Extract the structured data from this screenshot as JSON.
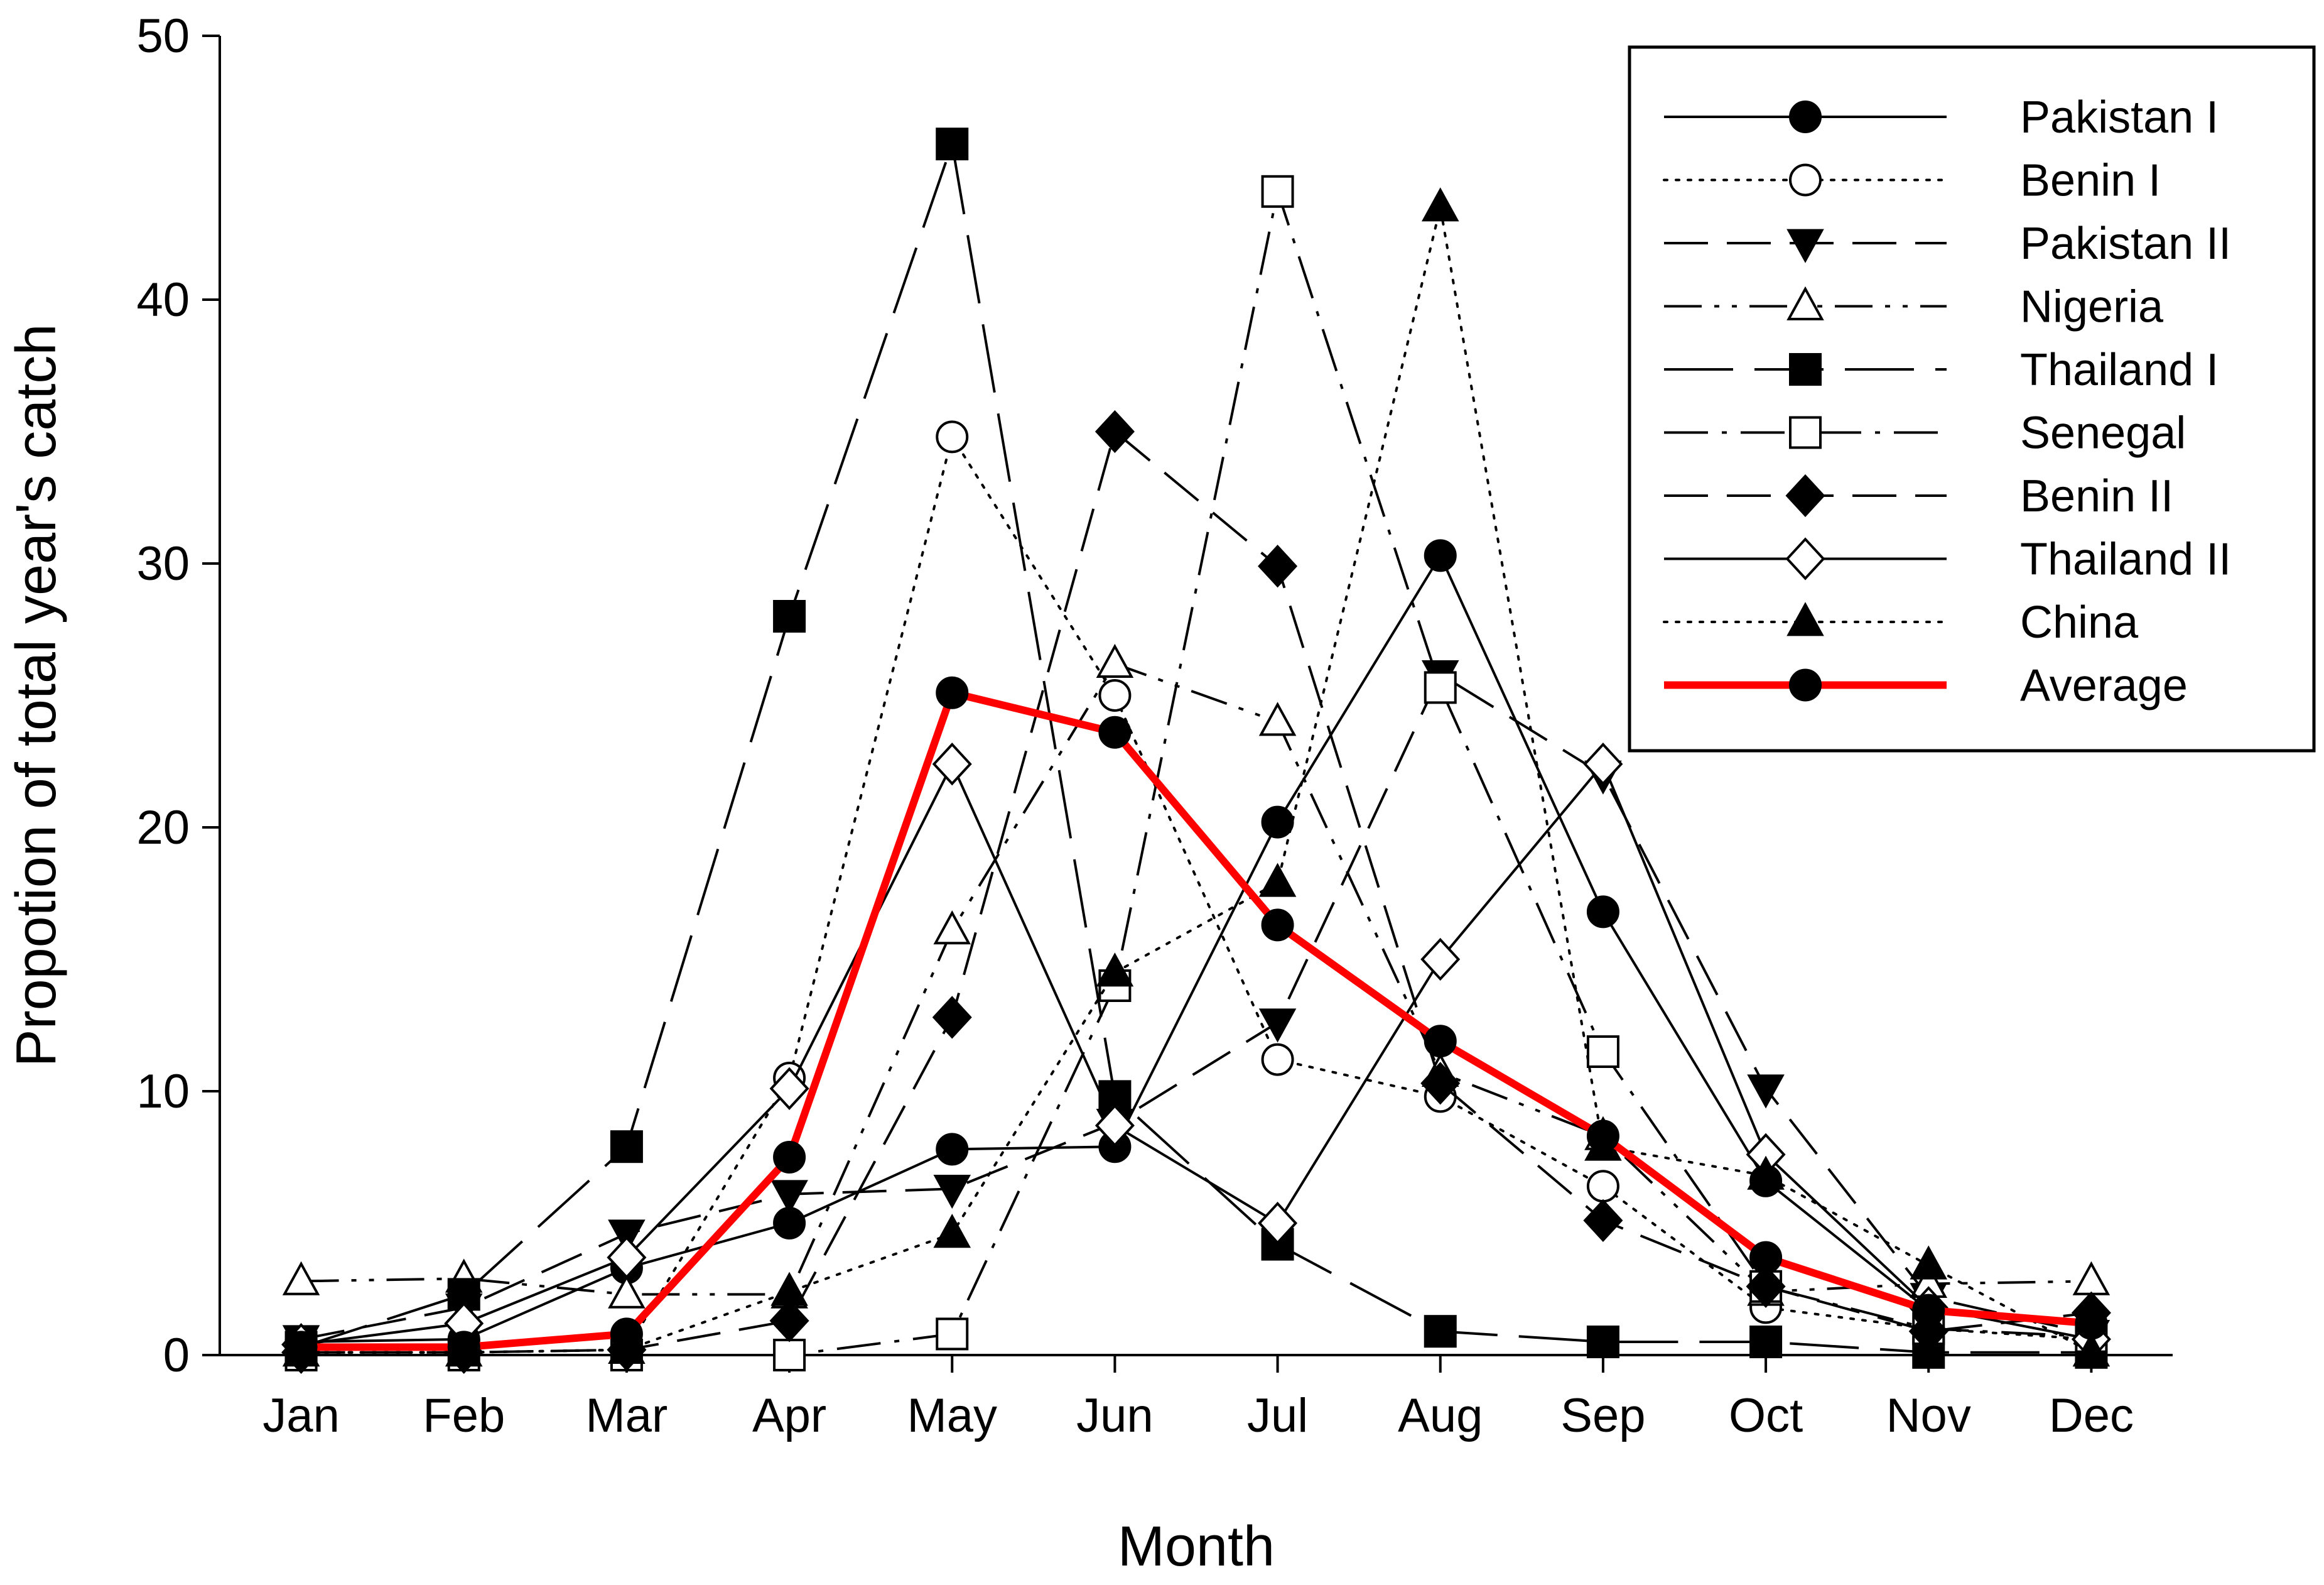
{
  "chart_data": {
    "type": "line",
    "title": "",
    "xlabel": "Month",
    "ylabel": "Propotion of total year's catch",
    "categories": [
      "Jan",
      "Feb",
      "Mar",
      "Apr",
      "May",
      "Jun",
      "Jul",
      "Aug",
      "Sep",
      "Oct",
      "Nov",
      "Dec"
    ],
    "ylim": [
      0,
      50
    ],
    "yticks": [
      0,
      10,
      20,
      30,
      40,
      50
    ],
    "grid": false,
    "legend_position": "top-right",
    "series": [
      {
        "name": "Pakistan I",
        "line": "solid",
        "marker": "circle",
        "filled": true,
        "color": "#000000",
        "values": [
          0.5,
          0.6,
          3.3,
          5.0,
          7.8,
          7.9,
          20.2,
          30.3,
          16.8,
          6.6,
          1.7,
          1.2
        ]
      },
      {
        "name": "Benin I",
        "line": "dotted",
        "marker": "circle",
        "filled": false,
        "color": "#000000",
        "values": [
          0.1,
          0.1,
          0.2,
          10.5,
          34.8,
          25.0,
          11.2,
          9.8,
          6.4,
          1.8,
          1.0,
          0.6
        ]
      },
      {
        "name": "Pakistan II",
        "line": "dashed",
        "marker": "triangle-down",
        "filled": true,
        "color": "#000000",
        "values": [
          0.6,
          1.8,
          4.6,
          6.1,
          6.3,
          8.8,
          12.6,
          25.8,
          22.0,
          10.1,
          2.2,
          0.8
        ]
      },
      {
        "name": "Nigeria",
        "line": "dashdotdot",
        "marker": "triangle-up",
        "filled": false,
        "color": "#000000",
        "values": [
          2.8,
          2.9,
          2.3,
          2.3,
          16.1,
          26.2,
          24.0,
          10.7,
          8.3,
          2.4,
          2.7,
          2.8
        ]
      },
      {
        "name": "Thailand I",
        "line": "longdash",
        "marker": "square",
        "filled": true,
        "color": "#000000",
        "values": [
          0.3,
          2.3,
          7.9,
          28.0,
          45.9,
          9.8,
          4.2,
          0.9,
          0.5,
          0.5,
          0.1,
          0.1
        ]
      },
      {
        "name": "Senegal",
        "line": "dashdot",
        "marker": "square",
        "filled": false,
        "color": "#000000",
        "values": [
          0.0,
          0.0,
          0.0,
          0.0,
          0.8,
          14.0,
          44.1,
          25.3,
          11.5,
          2.6,
          1.0,
          0.7
        ]
      },
      {
        "name": "Benin II",
        "line": "dashed",
        "marker": "diamond",
        "filled": true,
        "color": "#000000",
        "values": [
          0.1,
          0.1,
          0.2,
          1.3,
          12.8,
          35.0,
          29.9,
          10.3,
          5.1,
          2.6,
          0.9,
          1.6
        ]
      },
      {
        "name": "Thailand II",
        "line": "solid",
        "marker": "diamond",
        "filled": false,
        "color": "#000000",
        "values": [
          0.4,
          1.2,
          3.7,
          10.1,
          22.4,
          8.7,
          5.0,
          15.0,
          22.4,
          7.6,
          1.8,
          0.6
        ]
      },
      {
        "name": "China",
        "line": "dotted",
        "marker": "triangle-up",
        "filled": true,
        "color": "#000000",
        "values": [
          0.1,
          0.1,
          0.2,
          2.4,
          4.6,
          14.5,
          17.9,
          43.5,
          7.9,
          6.8,
          3.4,
          0.1
        ]
      },
      {
        "name": "Average",
        "line": "solid-thick",
        "marker": "circle",
        "filled": true,
        "color": "#ff0000",
        "values": [
          0.3,
          0.3,
          0.8,
          7.5,
          25.1,
          23.6,
          16.3,
          11.9,
          8.3,
          3.7,
          1.7,
          1.2
        ]
      }
    ]
  }
}
